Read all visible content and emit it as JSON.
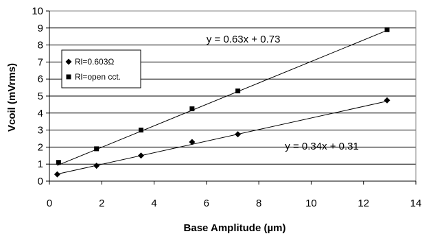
{
  "chart_data": {
    "type": "scatter",
    "title": "",
    "xlabel": "Base Amplitude (µm)",
    "ylabel": "Vcoil (mVrms)",
    "xlim": [
      0,
      14
    ],
    "ylim": [
      0,
      10
    ],
    "x_ticks": [
      0,
      2,
      4,
      6,
      8,
      10,
      12,
      14
    ],
    "y_ticks": [
      0,
      1,
      2,
      3,
      4,
      5,
      6,
      7,
      8,
      9,
      10
    ],
    "x_tick_labels": [
      "0",
      "2",
      "4",
      "6",
      "8",
      "10",
      "12",
      "14"
    ],
    "y_tick_labels": [
      "0",
      "1",
      "2",
      "3",
      "4",
      "5",
      "6",
      "7",
      "8",
      "9",
      "10"
    ],
    "grid": {
      "horizontal": true,
      "vertical": false
    },
    "legend_position": "upper-left",
    "series": [
      {
        "name": "Rl=0.603Ω",
        "marker": "diamond",
        "x": [
          0.3,
          1.8,
          3.5,
          5.45,
          7.2,
          12.9
        ],
        "y": [
          0.4,
          0.9,
          1.5,
          2.3,
          2.75,
          4.75
        ],
        "trendline": {
          "slope": 0.34,
          "intercept": 0.31,
          "x_range": [
            0.3,
            12.9
          ]
        },
        "equation": "y = 0.34x + 0.31"
      },
      {
        "name": "Rl=open cct.",
        "marker": "square",
        "x": [
          0.35,
          1.8,
          3.5,
          5.45,
          7.2,
          12.9
        ],
        "y": [
          1.1,
          1.9,
          3.0,
          4.25,
          5.3,
          8.9
        ],
        "trendline": {
          "slope": 0.63,
          "intercept": 0.73,
          "x_range": [
            0.3,
            12.9
          ]
        },
        "equation": "y = 0.63x + 0.73"
      }
    ]
  }
}
